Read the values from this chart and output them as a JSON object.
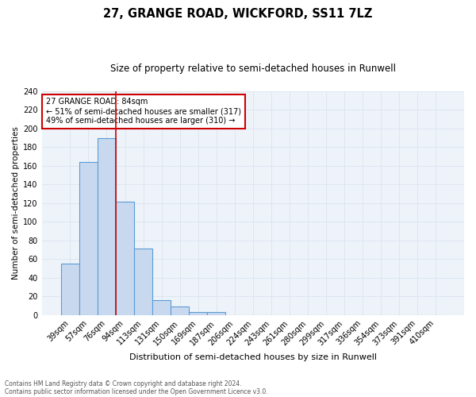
{
  "title": "27, GRANGE ROAD, WICKFORD, SS11 7LZ",
  "subtitle": "Size of property relative to semi-detached houses in Runwell",
  "xlabel": "Distribution of semi-detached houses by size in Runwell",
  "ylabel": "Number of semi-detached properties",
  "footnote1": "Contains HM Land Registry data © Crown copyright and database right 2024.",
  "footnote2": "Contains public sector information licensed under the Open Government Licence v3.0.",
  "categories": [
    "39sqm",
    "57sqm",
    "76sqm",
    "94sqm",
    "113sqm",
    "131sqm",
    "150sqm",
    "169sqm",
    "187sqm",
    "206sqm",
    "224sqm",
    "243sqm",
    "261sqm",
    "280sqm",
    "299sqm",
    "317sqm",
    "336sqm",
    "354sqm",
    "373sqm",
    "391sqm",
    "410sqm"
  ],
  "values": [
    55,
    164,
    190,
    122,
    71,
    16,
    9,
    3,
    3,
    0,
    0,
    0,
    0,
    0,
    0,
    0,
    0,
    0,
    0,
    0,
    0
  ],
  "bar_color": "#c8d9ef",
  "bar_edge_color": "#5b9bd5",
  "bar_edge_width": 0.8,
  "grid_color": "#dce6f0",
  "background_color": "#eef3fa",
  "red_line_color": "#cc0000",
  "annotation_text": "27 GRANGE ROAD: 84sqm\n← 51% of semi-detached houses are smaller (317)\n49% of semi-detached houses are larger (310) →",
  "annotation_box_color": "white",
  "annotation_box_edge": "#cc0000",
  "ylim": [
    0,
    240
  ],
  "yticks": [
    0,
    20,
    40,
    60,
    80,
    100,
    120,
    140,
    160,
    180,
    200,
    220,
    240
  ],
  "title_fontsize": 10.5,
  "subtitle_fontsize": 8.5,
  "xlabel_fontsize": 8,
  "ylabel_fontsize": 7.5,
  "tick_fontsize": 7,
  "annotation_fontsize": 7,
  "footnote_fontsize": 5.5
}
